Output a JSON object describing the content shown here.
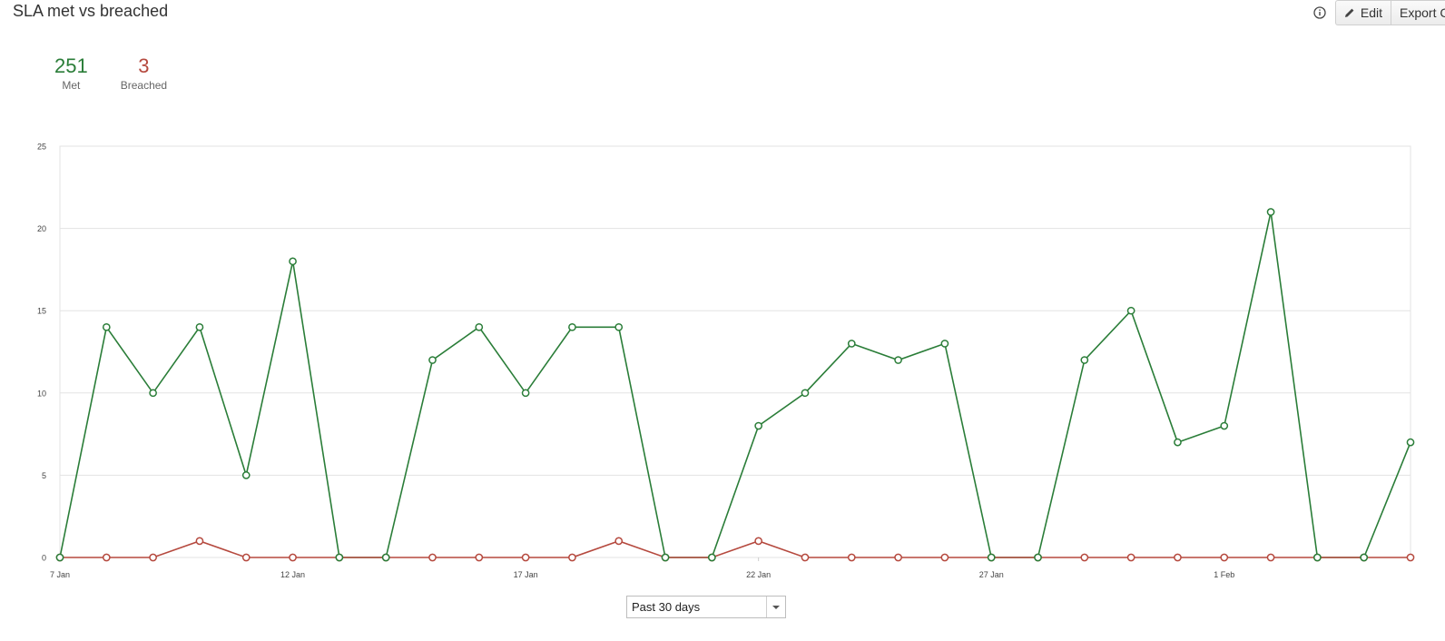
{
  "header": {
    "title": "SLA met vs breached",
    "edit_label": "Edit",
    "export_label": "Export CSV"
  },
  "summary": {
    "met_value": "251",
    "met_label": "Met",
    "breached_value": "3",
    "breached_label": "Breached"
  },
  "filter": {
    "range_value": "Past 30 days"
  },
  "colors": {
    "met": "#2a7d38",
    "breached": "#b5493e",
    "grid": "#e3e3e3"
  },
  "chart_data": {
    "type": "line",
    "x": [
      "7 Jan",
      "8 Jan",
      "9 Jan",
      "10 Jan",
      "11 Jan",
      "12 Jan",
      "13 Jan",
      "14 Jan",
      "15 Jan",
      "16 Jan",
      "17 Jan",
      "18 Jan",
      "19 Jan",
      "20 Jan",
      "21 Jan",
      "22 Jan",
      "23 Jan",
      "24 Jan",
      "25 Jan",
      "26 Jan",
      "27 Jan",
      "28 Jan",
      "29 Jan",
      "30 Jan",
      "31 Jan",
      "1 Feb",
      "2 Feb",
      "3 Feb",
      "4 Feb",
      "5 Feb"
    ],
    "x_tick_labels": [
      "7 Jan",
      "12 Jan",
      "17 Jan",
      "22 Jan",
      "27 Jan",
      "1 Feb"
    ],
    "x_tick_step": 5,
    "y_ticks": [
      0,
      5,
      10,
      15,
      20,
      25
    ],
    "ylim": [
      0,
      25
    ],
    "grid": true,
    "legend": "none",
    "series": [
      {
        "values": [
          0,
          14,
          10,
          14,
          5,
          18,
          0,
          0,
          12,
          14,
          10,
          14,
          14,
          0,
          0,
          8,
          10,
          13,
          12,
          13,
          0,
          0,
          12,
          15,
          7,
          8,
          21,
          0,
          0,
          7
        ]
      },
      {
        "values": [
          0,
          0,
          0,
          1,
          0,
          0,
          0,
          0,
          0,
          0,
          0,
          0,
          1,
          0,
          0,
          1,
          0,
          0,
          0,
          0,
          0,
          0,
          0,
          0,
          0,
          0,
          0,
          0,
          0,
          0
        ]
      }
    ]
  }
}
